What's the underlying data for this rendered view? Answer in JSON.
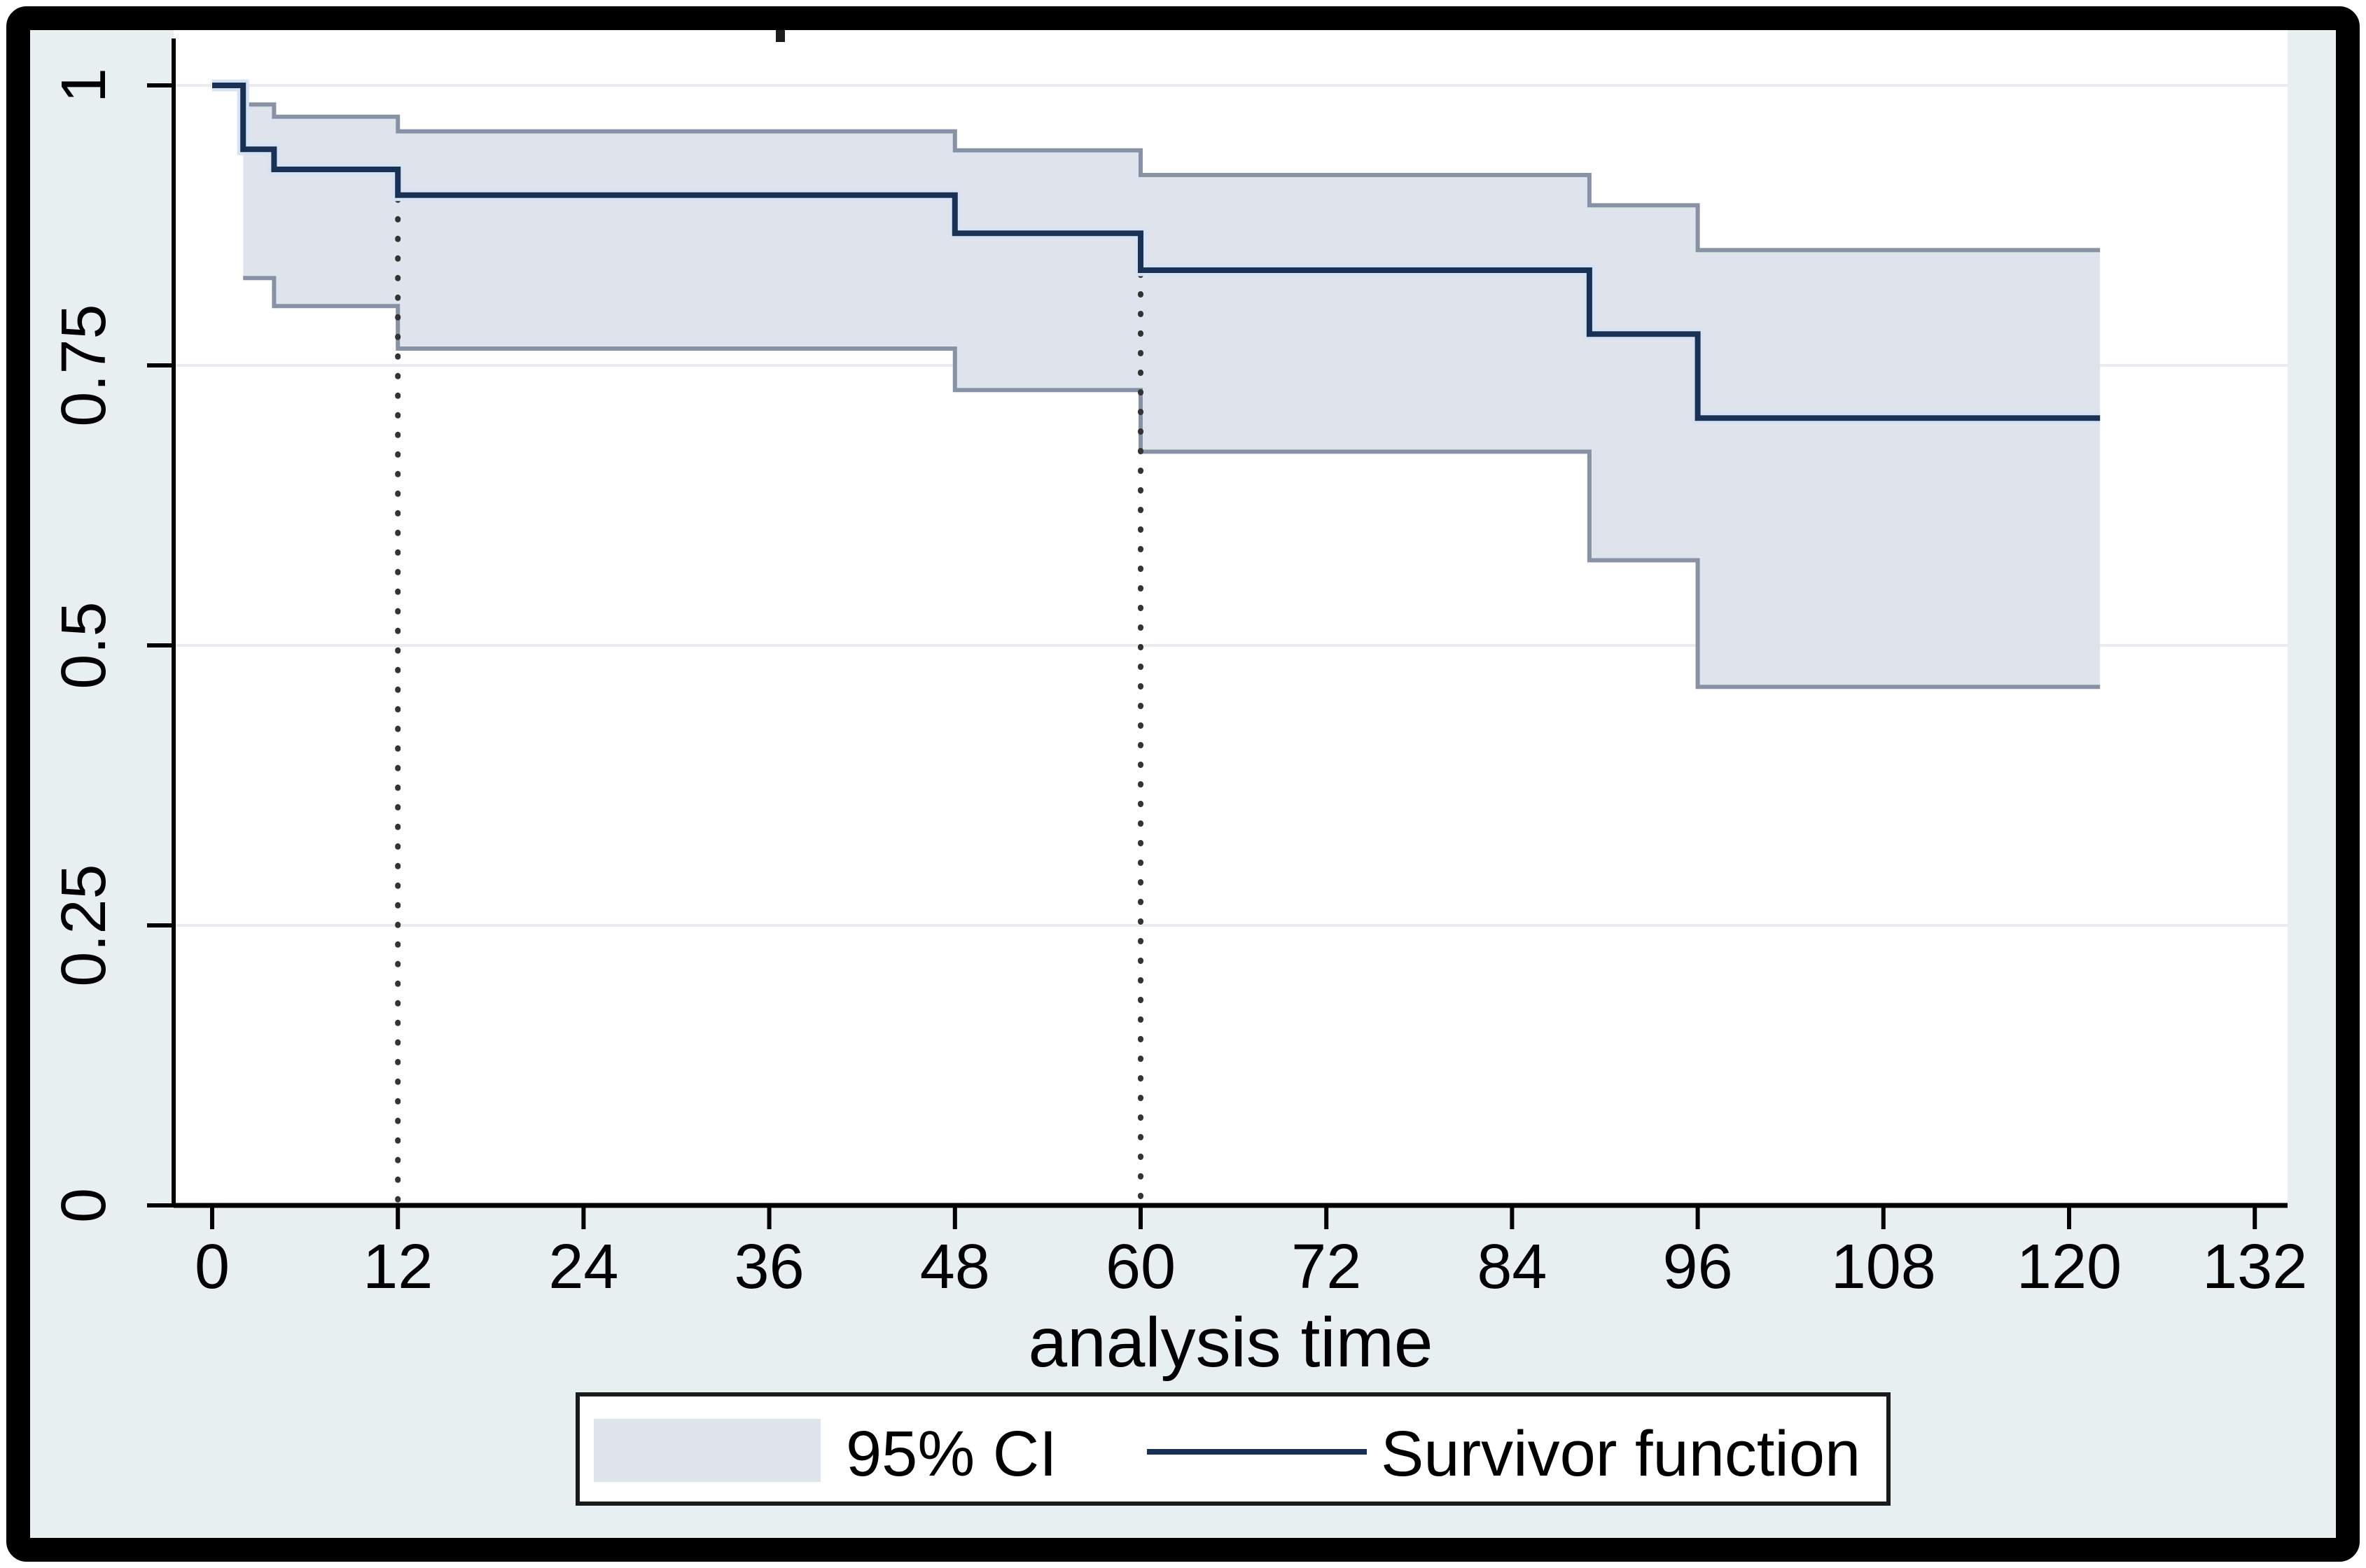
{
  "palette": {
    "outer_background": "#e8eff1",
    "frame_border": "#000000",
    "page_margin": "#ffffff",
    "plot_background": "#ffffff",
    "gridline": "#e9edf1",
    "band_fill": "#dfe3ec",
    "band_edge": "#8793a5",
    "survivor_line": "#1a3156",
    "survivor_halo": "#d7e3f2",
    "reference_line": "#333333",
    "axis": "#000000",
    "text": "#000000",
    "legend_background": "#ffffff",
    "legend_border": "#1a1a1a"
  },
  "chart_data": {
    "type": "line",
    "subtype": "kaplan-meier-step-with-confidence-band",
    "title": "",
    "xlabel": "analysis time",
    "ylabel": "",
    "xlim": [
      0,
      132
    ],
    "ylim": [
      0,
      1
    ],
    "x_ticks": [
      0,
      12,
      24,
      36,
      48,
      60,
      72,
      84,
      96,
      108,
      120,
      132
    ],
    "y_ticks": [
      {
        "v": 0,
        "label": "0"
      },
      {
        "v": 0.25,
        "label": "0.25"
      },
      {
        "v": 0.5,
        "label": "0.5"
      },
      {
        "v": 0.75,
        "label": "0.75"
      },
      {
        "v": 1,
        "label": "1"
      }
    ],
    "grid_y": [
      1,
      0.75,
      0.5,
      0.25
    ],
    "grid_on": true,
    "reference_lines_x": [
      12,
      60
    ],
    "data_end_x": 122,
    "series": [
      {
        "name": "Survivor function",
        "role": "survivor",
        "steps": [
          [
            0,
            1.0
          ],
          [
            2,
            0.943
          ],
          [
            4,
            0.925
          ],
          [
            12,
            0.902
          ],
          [
            48,
            0.868
          ],
          [
            60,
            0.835
          ],
          [
            89,
            0.778
          ],
          [
            96,
            0.703
          ]
        ]
      },
      {
        "name": "95% CI upper bound",
        "role": "ci-upper",
        "steps": [
          [
            2,
            0.983
          ],
          [
            4,
            0.972
          ],
          [
            12,
            0.959
          ],
          [
            48,
            0.942
          ],
          [
            60,
            0.92
          ],
          [
            89,
            0.893
          ],
          [
            96,
            0.853
          ]
        ]
      },
      {
        "name": "95% CI lower bound",
        "role": "ci-lower",
        "steps": [
          [
            2,
            0.828
          ],
          [
            4,
            0.803
          ],
          [
            12,
            0.765
          ],
          [
            48,
            0.728
          ],
          [
            60,
            0.673
          ],
          [
            89,
            0.576
          ],
          [
            96,
            0.463
          ]
        ]
      }
    ],
    "legend": {
      "position": "bottom",
      "entries": [
        {
          "swatch": "band",
          "label": "95% CI"
        },
        {
          "swatch": "line",
          "label": "Survivor function"
        }
      ]
    }
  },
  "artifacts": {
    "cropped_title_mark": true
  }
}
